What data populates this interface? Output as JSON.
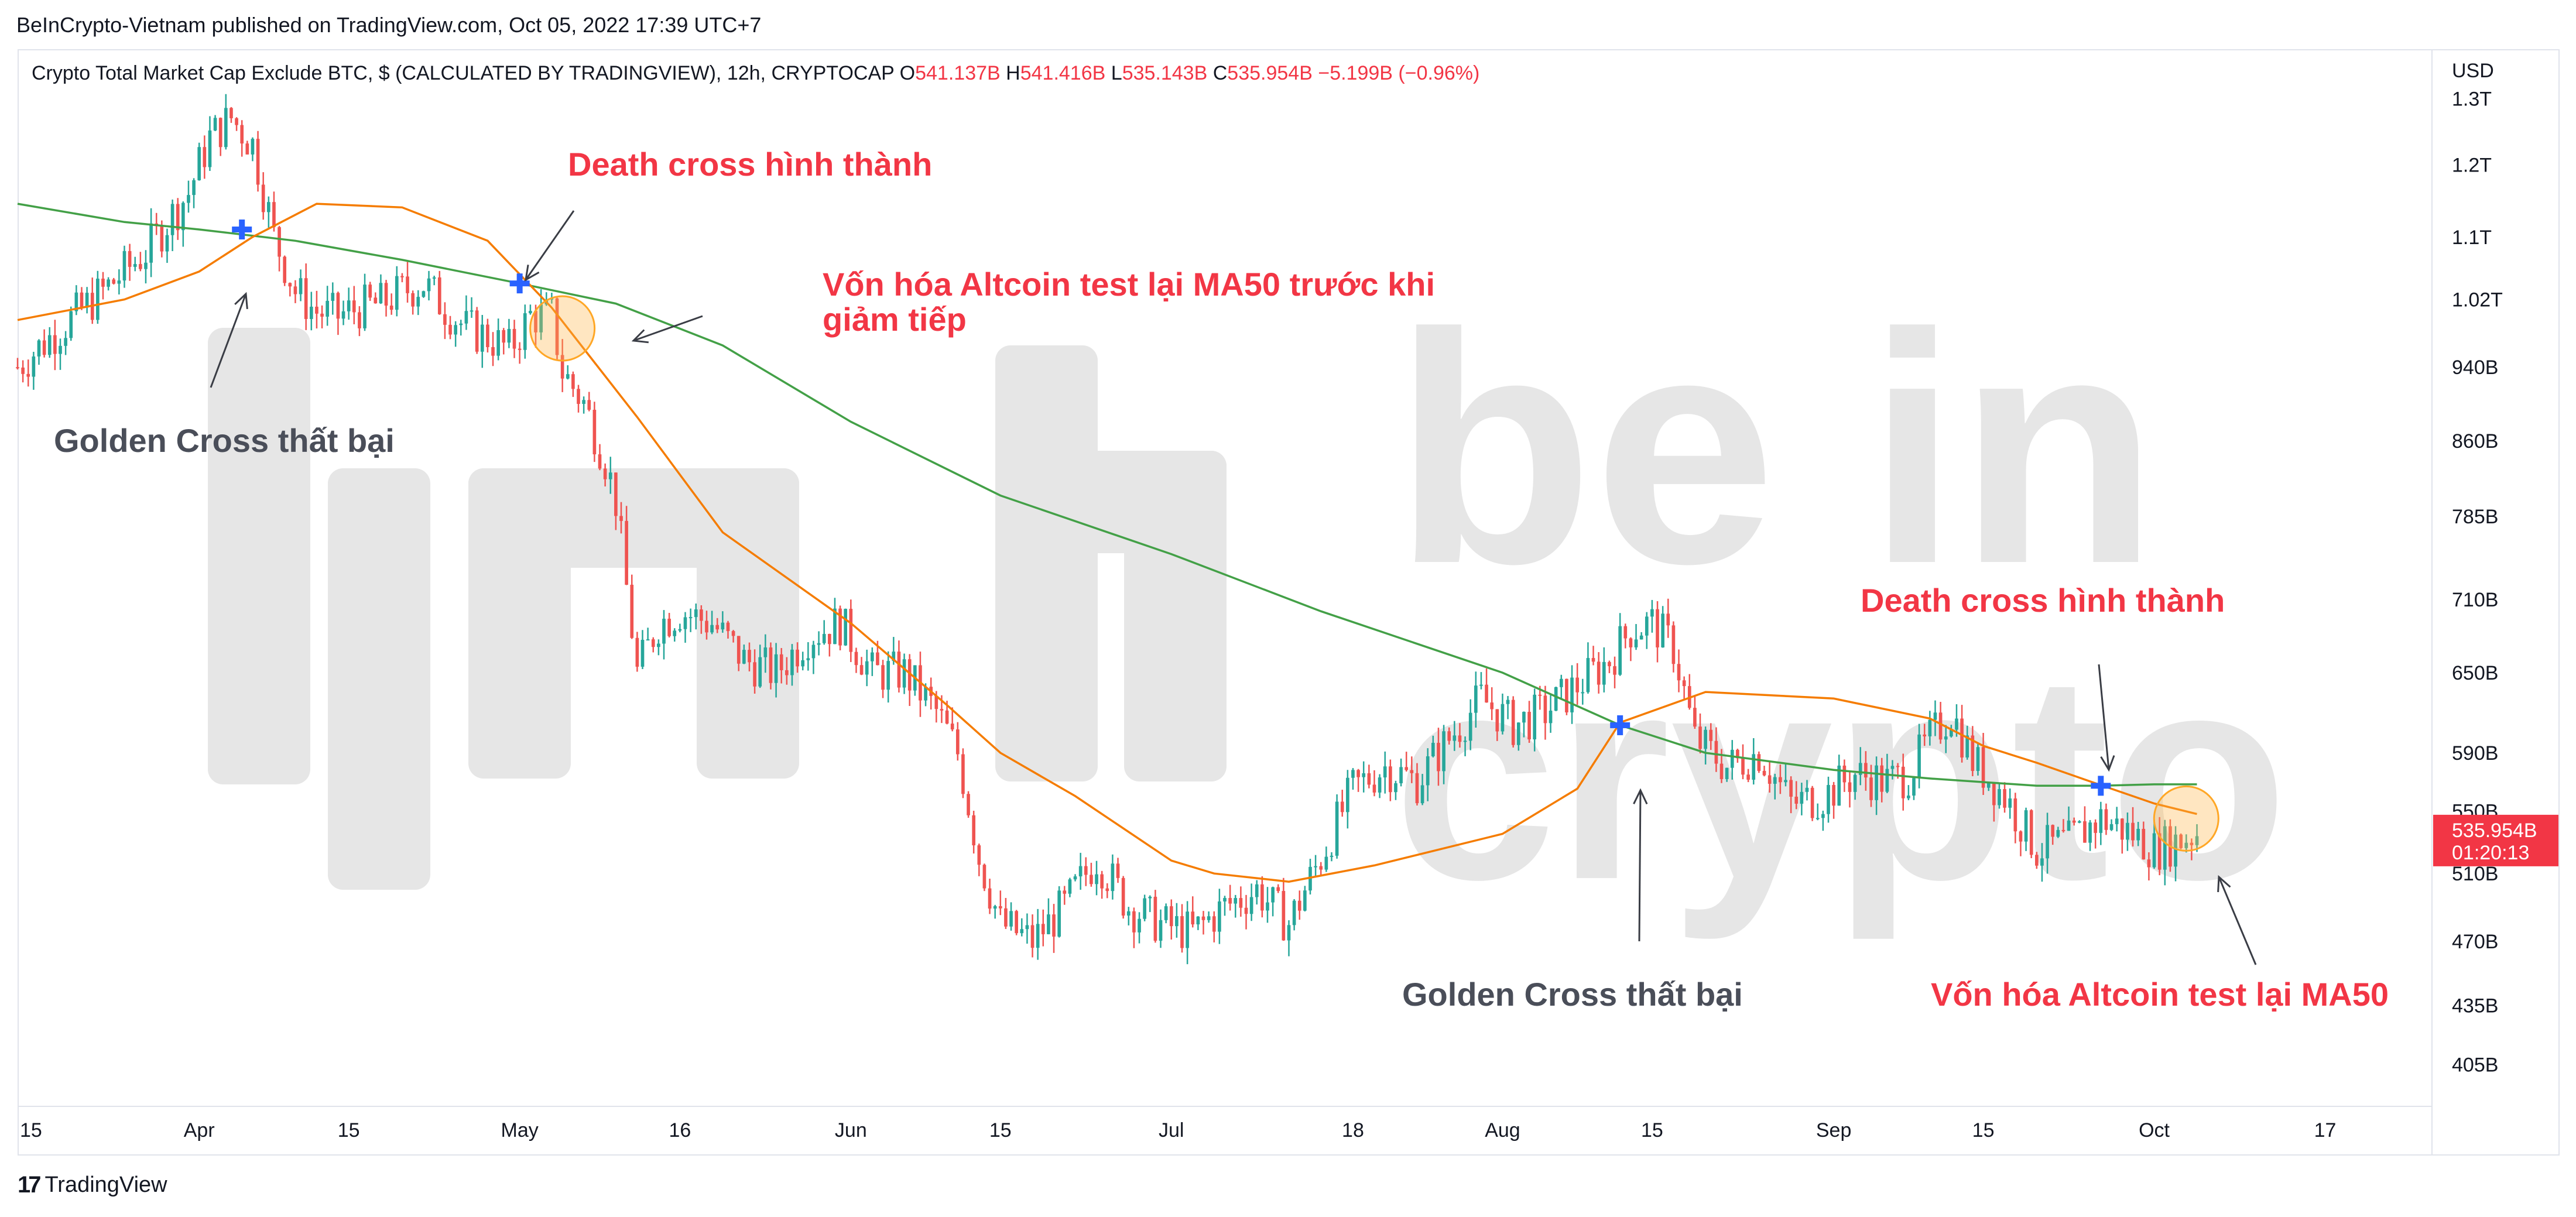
{
  "publisher_line": "BeInCrypto-Vietnam published on TradingView.com, Oct 05, 2022 17:39 UTC+7",
  "header": {
    "symbol_text": "Crypto Total Market Cap Exclude BTC, $ (CALCULATED BY TRADINGVIEW), 12h, CRYPTOCAP",
    "o_label": "O",
    "o_value": "541.137B",
    "h_label": "H",
    "h_value": "541.416B",
    "l_label": "L",
    "l_value": "535.143B",
    "c_label": "C",
    "c_value": "535.954B",
    "change": "−5.199B (−0.96%)"
  },
  "footer_brand": "TradingView",
  "watermark": "be in crypto",
  "colors": {
    "up": "#26a69a",
    "down": "#ef5350",
    "ma_fast": "#f57c00",
    "ma_slow": "#43a047",
    "annotation_red": "#f23645",
    "annotation_gray": "#4a4e59",
    "cross_marker": "#2962ff",
    "price_tag": "#f23645"
  },
  "chart_data": {
    "type": "candlestick",
    "currency_label": "USD",
    "y_ticks": [
      "1.3T",
      "1.2T",
      "1.1T",
      "1.02T",
      "940B",
      "860B",
      "785B",
      "710B",
      "650B",
      "590B",
      "550B",
      "510B",
      "470B",
      "435B",
      "405B"
    ],
    "y_tick_values": [
      1300,
      1200,
      1100,
      1020,
      940,
      860,
      785,
      710,
      650,
      590,
      550,
      510,
      470,
      435,
      405
    ],
    "y_scale": "log",
    "ylim": [
      385,
      1380
    ],
    "x_ticks": [
      "15",
      "Apr",
      "15",
      "May",
      "16",
      "Jun",
      "15",
      "Jul",
      "18",
      "Aug",
      "15",
      "Sep",
      "15",
      "Oct",
      "17"
    ],
    "x_tick_dates": [
      "2022-03-15",
      "2022-04-01",
      "2022-04-15",
      "2022-05-01",
      "2022-05-16",
      "2022-06-01",
      "2022-06-15",
      "2022-07-01",
      "2022-07-18",
      "2022-08-01",
      "2022-08-15",
      "2022-09-01",
      "2022-09-15",
      "2022-10-01",
      "2022-10-17"
    ],
    "xlim": [
      "2022-03-15",
      "2022-10-27"
    ],
    "last_price": "535.954B",
    "countdown": "01:20:13",
    "series": [
      {
        "name": "",
        "kind": "close",
        "x": [
          "2022-03-15",
          "2022-03-19",
          "2022-03-23",
          "2022-03-27",
          "2022-03-31",
          "2022-04-02",
          "2022-04-04",
          "2022-04-06",
          "2022-04-08",
          "2022-04-10",
          "2022-04-12",
          "2022-04-14",
          "2022-04-16",
          "2022-04-18",
          "2022-04-20",
          "2022-04-22",
          "2022-04-24",
          "2022-04-26",
          "2022-04-28",
          "2022-04-30",
          "2022-05-02",
          "2022-05-04",
          "2022-05-05",
          "2022-05-07",
          "2022-05-09",
          "2022-05-10",
          "2022-05-11",
          "2022-05-12",
          "2022-05-14",
          "2022-05-16",
          "2022-05-19",
          "2022-05-22",
          "2022-05-25",
          "2022-05-28",
          "2022-05-31",
          "2022-06-03",
          "2022-06-06",
          "2022-06-09",
          "2022-06-11",
          "2022-06-13",
          "2022-06-15",
          "2022-06-18",
          "2022-06-21",
          "2022-06-24",
          "2022-06-27",
          "2022-06-30",
          "2022-07-03",
          "2022-07-06",
          "2022-07-09",
          "2022-07-12",
          "2022-07-15",
          "2022-07-18",
          "2022-07-21",
          "2022-07-24",
          "2022-07-27",
          "2022-07-30",
          "2022-08-02",
          "2022-08-05",
          "2022-08-08",
          "2022-08-11",
          "2022-08-13",
          "2022-08-15",
          "2022-08-17",
          "2022-08-19",
          "2022-08-22",
          "2022-08-25",
          "2022-08-28",
          "2022-08-31",
          "2022-09-03",
          "2022-09-06",
          "2022-09-08",
          "2022-09-10",
          "2022-09-12",
          "2022-09-14",
          "2022-09-17",
          "2022-09-20",
          "2022-09-23",
          "2022-09-26",
          "2022-09-29",
          "2022-10-01",
          "2022-10-03",
          "2022-10-05"
        ],
        "values": [
          940,
          985,
          1030,
          1080,
          1160,
          1240,
          1270,
          1230,
          1100,
          1030,
          1005,
          1000,
          1010,
          1015,
          1030,
          1040,
          1010,
          985,
          975,
          960,
          1000,
          1000,
          935,
          900,
          840,
          800,
          720,
          650,
          690,
          700,
          690,
          660,
          650,
          680,
          690,
          650,
          650,
          620,
          590,
          520,
          480,
          470,
          490,
          520,
          490,
          480,
          475,
          490,
          500,
          480,
          520,
          565,
          580,
          570,
          600,
          630,
          610,
          620,
          640,
          660,
          685,
          690,
          670,
          600,
          580,
          590,
          555,
          560,
          575,
          570,
          575,
          600,
          620,
          585,
          560,
          525,
          530,
          545,
          535,
          525,
          530,
          536
        ]
      },
      {
        "name": "",
        "kind": "ma_fast",
        "x": [
          "2022-03-15",
          "2022-03-25",
          "2022-04-01",
          "2022-04-06",
          "2022-04-12",
          "2022-04-20",
          "2022-04-28",
          "2022-05-04",
          "2022-05-12",
          "2022-05-20",
          "2022-06-01",
          "2022-06-10",
          "2022-06-15",
          "2022-06-22",
          "2022-07-01",
          "2022-07-05",
          "2022-07-12",
          "2022-07-20",
          "2022-08-01",
          "2022-08-08",
          "2022-08-12",
          "2022-08-20",
          "2022-09-01",
          "2022-09-10",
          "2022-09-15",
          "2022-09-20",
          "2022-09-25",
          "2022-10-01",
          "2022-10-05"
        ],
        "values": [
          995,
          1020,
          1055,
          1100,
          1145,
          1140,
          1095,
          1010,
          885,
          770,
          690,
          625,
          590,
          560,
          518,
          510,
          505,
          515,
          535,
          565,
          612,
          635,
          630,
          615,
          595,
          583,
          570,
          555,
          548
        ]
      },
      {
        "name": "",
        "kind": "ma_slow",
        "x": [
          "2022-03-15",
          "2022-03-25",
          "2022-04-01",
          "2022-04-10",
          "2022-04-20",
          "2022-05-01",
          "2022-05-10",
          "2022-05-20",
          "2022-06-01",
          "2022-06-15",
          "2022-07-01",
          "2022-07-15",
          "2022-08-01",
          "2022-08-12",
          "2022-08-20",
          "2022-09-01",
          "2022-09-10",
          "2022-09-20",
          "2022-09-26",
          "2022-10-01",
          "2022-10-05"
        ],
        "values": [
          1145,
          1120,
          1110,
          1095,
          1070,
          1040,
          1015,
          965,
          880,
          805,
          750,
          700,
          650,
          610,
          590,
          578,
          572,
          567,
          567,
          568,
          568
        ]
      }
    ],
    "cross_points": [
      {
        "date": "2022-04-05",
        "value": 1110
      },
      {
        "date": "2022-05-01",
        "value": 1040
      },
      {
        "date": "2022-08-12",
        "value": 610
      },
      {
        "date": "2022-09-26",
        "value": 567
      }
    ],
    "retest_circles": [
      {
        "date": "2022-05-05",
        "value": 985
      },
      {
        "date": "2022-10-04",
        "value": 545
      }
    ],
    "annotations": [
      {
        "text": "Death cross hình thành",
        "color": "red"
      },
      {
        "text": "Vốn hóa Altcoin test lại MA50 trước khi",
        "color": "red"
      },
      {
        "text": "giảm tiếp",
        "color": "red"
      },
      {
        "text": "Golden Cross thất bại",
        "color": "gray"
      },
      {
        "text": "Death cross hình thành",
        "color": "red"
      },
      {
        "text": "Golden Cross thất bại",
        "color": "gray"
      },
      {
        "text": "Vốn hóa Altcoin test lại MA50",
        "color": "red"
      }
    ]
  }
}
